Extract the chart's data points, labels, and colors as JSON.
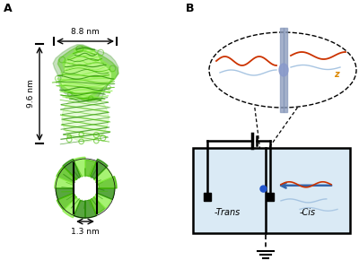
{
  "panel_A_label": "A",
  "panel_B_label": "B",
  "dim_88": "8.8 nm",
  "dim_96": "9.6 nm",
  "dim_13": "1.3 nm",
  "trans_label": "-Trans",
  "cis_label": "-Cis",
  "green_dark": "#228800",
  "green_mid": "#44bb00",
  "green_light": "#88ee44",
  "green_pale": "#ccff99",
  "blue_fill": "#daeaf5",
  "blue_mid": "#4488cc",
  "red_color": "#cc3300",
  "orange_color": "#dd8800",
  "light_blue_strand": "#99bbdd",
  "mem_color": "#8899bb",
  "background": "#ffffff",
  "arrow_blue": "#3366aa"
}
